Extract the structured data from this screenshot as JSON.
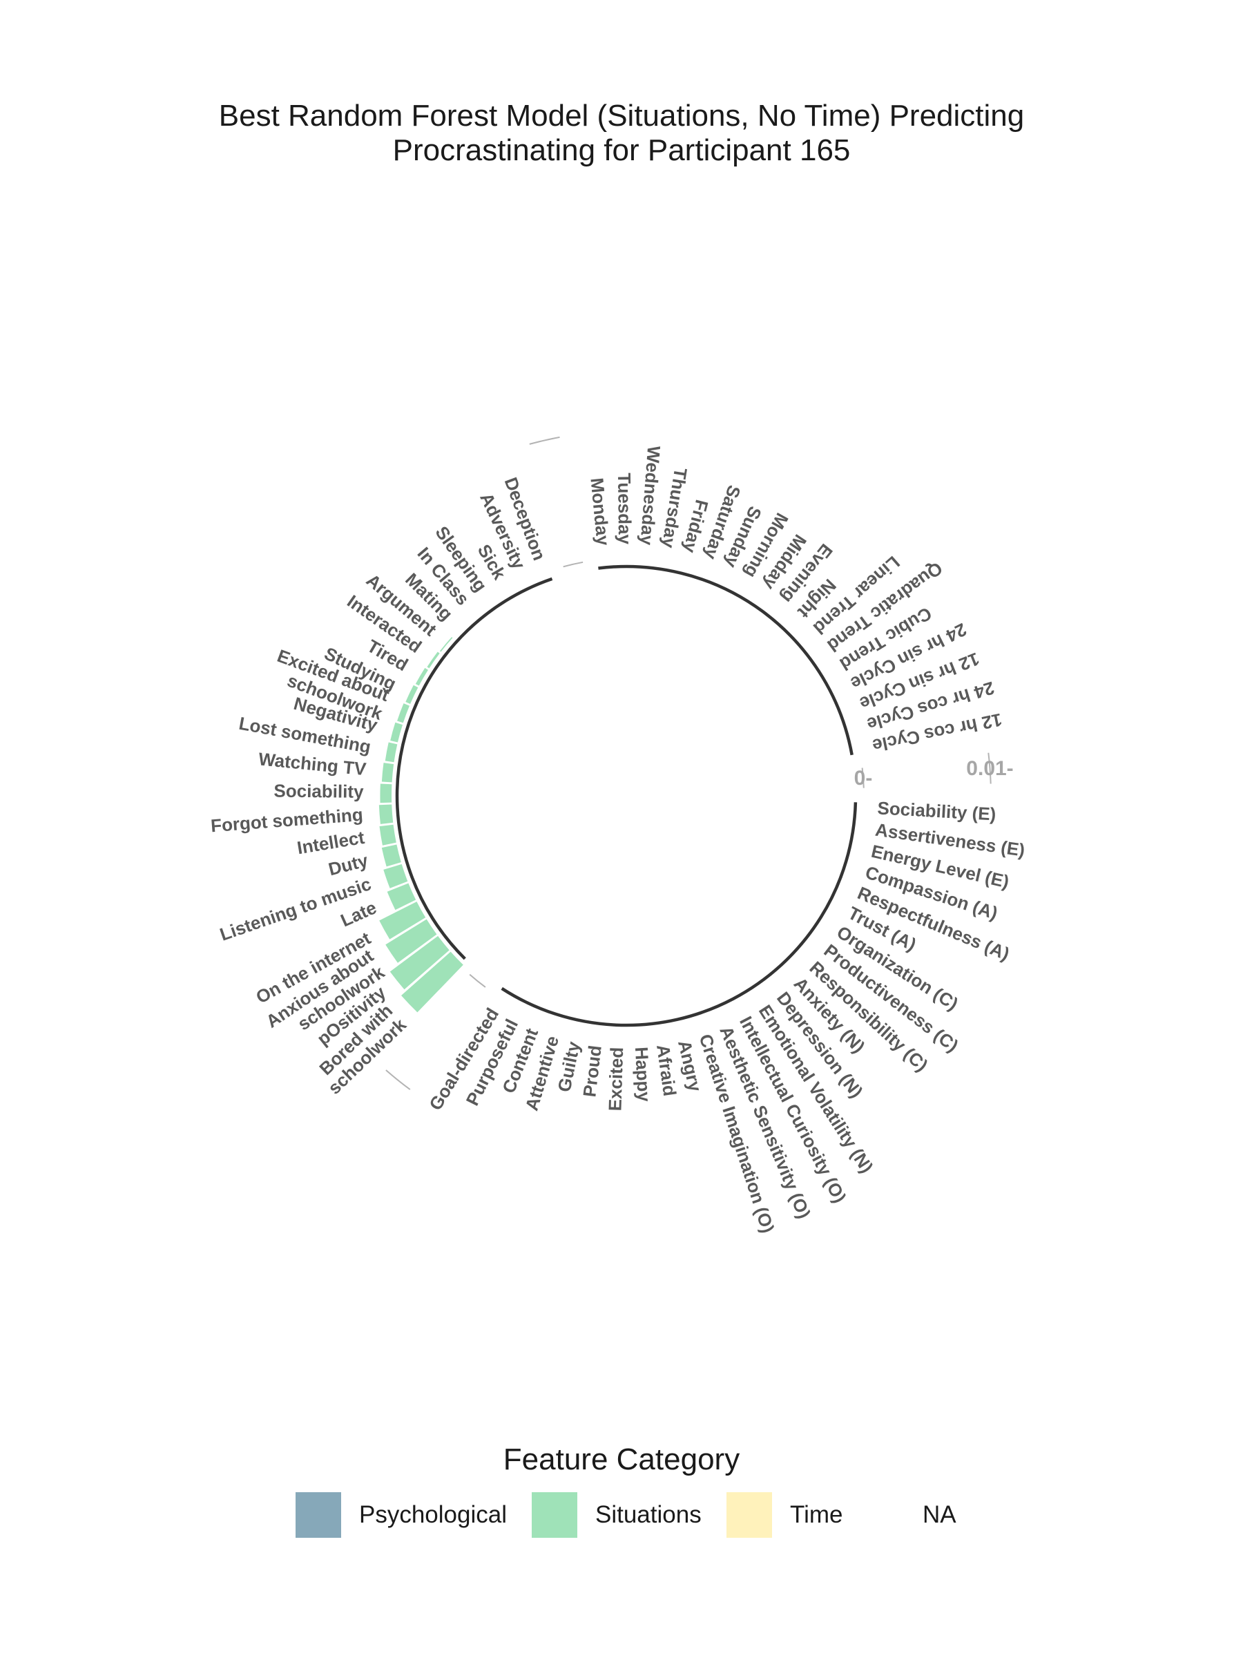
{
  "title_line1": "Best Random Forest Model (Situations, No Time) Predicting",
  "title_line2": "Procrastinating for Participant 165",
  "legend": {
    "title": "Feature Category",
    "items": [
      {
        "label": "Psychological",
        "color": "#86a8b9"
      },
      {
        "label": "Situations",
        "color": "#9fe2b8"
      },
      {
        "label": "Time",
        "color": "#fff2bb"
      },
      {
        "label": "NA",
        "color": "#ffffff"
      }
    ]
  },
  "chart_data": {
    "type": "bar",
    "coordinates": "polar",
    "value_axis_ticks": [
      {
        "value": 0,
        "label": "0-"
      },
      {
        "value": 0.01,
        "label": "0.01-"
      }
    ],
    "groups": [
      {
        "category": "Psychological",
        "features": [
          "Sociability (E)",
          "Assertiveness (E)",
          "Energy Level (E)",
          "Compassion (A)",
          "Respectfulness (A)",
          "Trust (A)",
          "Organization (C)",
          "Productiveness (C)",
          "Responsibility (C)",
          "Anxiety (N)",
          "Depression (N)",
          "Emotional Volatility (N)",
          "Intellectual Curiosity (O)",
          "Aesthetic Sensitivity (O)",
          "Creative Imagination (O)",
          "Angry",
          "Afraid",
          "Happy",
          "Excited",
          "Proud",
          "Guilty",
          "Attentive",
          "Content",
          "Purposeful",
          "Goal-directed"
        ],
        "values": [
          0,
          0,
          0,
          0,
          0,
          0,
          0,
          0,
          0,
          0,
          0,
          0,
          0,
          0,
          0,
          0,
          0,
          0,
          0,
          0,
          0,
          0,
          0,
          0,
          0
        ]
      },
      {
        "category": "Situations",
        "features": [
          "Bored with schoolwork",
          "pOsitivity",
          "Anxious about schoolwork",
          "On the internet",
          "Late",
          "Listening to music",
          "Duty",
          "Intellect",
          "Forgot something",
          "Sociability",
          "Watching TV",
          "Lost something",
          "Negativity",
          "Excited about schoolwork",
          "Studying",
          "Tired",
          "Interacted",
          "Argument",
          "Mating",
          "In Class",
          "Sleeping",
          "Sick",
          "Adversity",
          "Deception"
        ],
        "values": [
          0.0052,
          0.0047,
          0.0038,
          0.0033,
          0.0018,
          0.0015,
          0.0012,
          0.0011,
          0.001,
          0.0009,
          0.0008,
          0.0007,
          0.0006,
          0.0005,
          0.0004,
          0.0003,
          0.0002,
          0.0001,
          0,
          0,
          0,
          0,
          0,
          0
        ]
      },
      {
        "category": "Time",
        "features": [
          "Monday",
          "Tuesday",
          "Wednesday",
          "Thursday",
          "Friday",
          "Saturday",
          "Sunday",
          "Morning",
          "Midday",
          "Evening",
          "Night",
          "Linear Trend",
          "Quadratic Trend",
          "Cubic Trend",
          "24 hr sin Cycle",
          "12 hr sin Cycle",
          "24 hr cos Cycle",
          "12 hr cos Cycle"
        ],
        "values": [
          0,
          0,
          0,
          0,
          0,
          0,
          0,
          0,
          0,
          0,
          0,
          0,
          0,
          0,
          0,
          0,
          0,
          0
        ]
      }
    ]
  }
}
